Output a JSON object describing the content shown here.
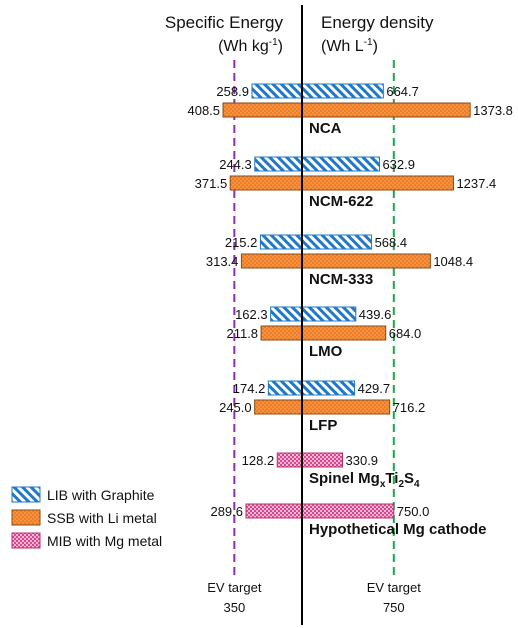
{
  "chart_data": {
    "type": "bar",
    "orientation": "butterfly",
    "left_axis": {
      "title": "Specific Energy",
      "unit": "(Wh kg",
      "unit_sup": "-1",
      "unit_close": ")",
      "title_color": "#8e2bb8"
    },
    "right_axis": {
      "title": "Energy density",
      "unit": "(Wh L",
      "unit_sup": "-1",
      "unit_close": ")",
      "title_color": "#1aa84a"
    },
    "targets": {
      "left": {
        "label": "EV target",
        "value": 350,
        "value_label": "350",
        "color": "#8e2bb8"
      },
      "right": {
        "label": "EV target",
        "value": 750,
        "value_label": "750",
        "color": "#1aa84a"
      }
    },
    "series": [
      {
        "name": "LIB with Graphite",
        "pattern": "hatch",
        "color": "#1f78c8"
      },
      {
        "name": "SSB with Li metal",
        "pattern": "dots",
        "color": "#f07d22"
      },
      {
        "name": "MIB with Mg metal",
        "pattern": "check",
        "color": "#e0458f"
      }
    ],
    "groups": [
      {
        "category": "NCA",
        "bars": [
          {
            "series": 0,
            "left": 258.9,
            "right": 664.7,
            "left_label": "258.9",
            "right_label": "664.7"
          },
          {
            "series": 1,
            "left": 408.5,
            "right": 1373.8,
            "left_label": "408.5",
            "right_label": "1373.8"
          }
        ]
      },
      {
        "category": "NCM-622",
        "bars": [
          {
            "series": 0,
            "left": 244.3,
            "right": 632.9,
            "left_label": "244.3",
            "right_label": "632.9"
          },
          {
            "series": 1,
            "left": 371.5,
            "right": 1237.4,
            "left_label": "371.5",
            "right_label": "1237.4"
          }
        ]
      },
      {
        "category": "NCM-333",
        "bars": [
          {
            "series": 0,
            "left": 215.2,
            "right": 568.4,
            "left_label": "215.2",
            "right_label": "568.4"
          },
          {
            "series": 1,
            "left": 313.4,
            "right": 1048.4,
            "left_label": "313.4",
            "right_label": "1048.4"
          }
        ]
      },
      {
        "category": "LMO",
        "bars": [
          {
            "series": 0,
            "left": 162.3,
            "right": 439.6,
            "left_label": "162.3",
            "right_label": "439.6"
          },
          {
            "series": 1,
            "left": 211.8,
            "right": 684.0,
            "left_label": "211.8",
            "right_label": "684.0"
          }
        ]
      },
      {
        "category": "LFP",
        "bars": [
          {
            "series": 0,
            "left": 174.2,
            "right": 429.7,
            "left_label": "174.2",
            "right_label": "429.7"
          },
          {
            "series": 1,
            "left": 245.0,
            "right": 716.2,
            "left_label": "245.0",
            "right_label": "716.2"
          }
        ]
      },
      {
        "category": "Spinel Mg",
        "category_sub1": "x",
        "category_mid": "Ti",
        "category_sub2": "2",
        "category_mid2": "S",
        "category_sub3": "4",
        "bars": [
          {
            "series": 2,
            "left": 128.2,
            "right": 330.9,
            "left_label": "128.2",
            "right_label": "330.9"
          }
        ]
      },
      {
        "category": "Hypothetical Mg cathode",
        "bars": [
          {
            "series": 2,
            "left": 289.6,
            "right": 750.0,
            "left_label": "289.6",
            "right_label": "750.0"
          }
        ]
      }
    ]
  }
}
